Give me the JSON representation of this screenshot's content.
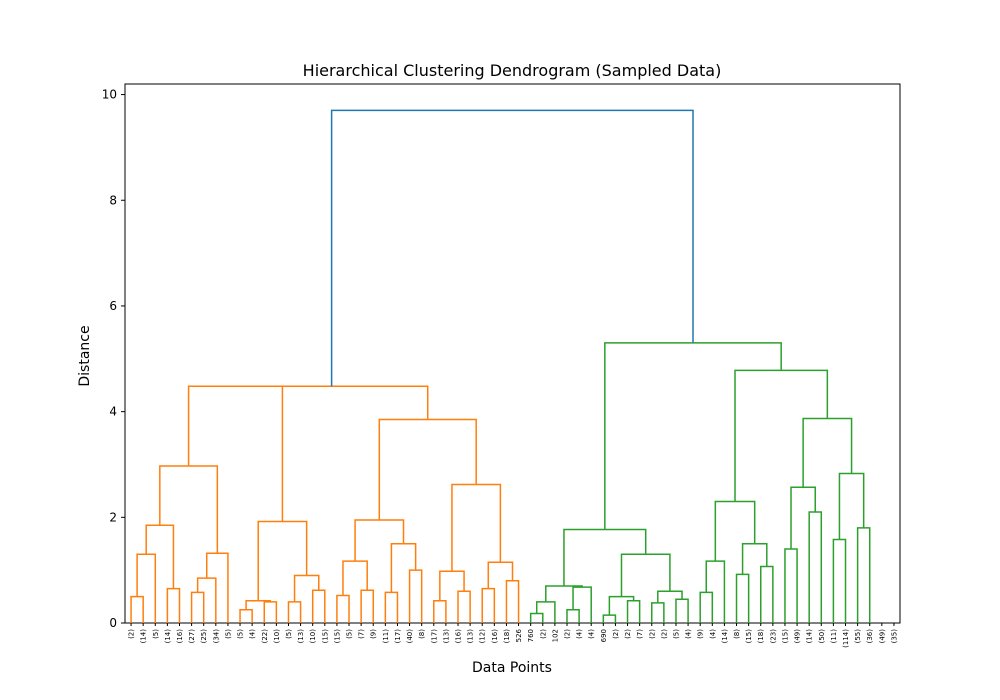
{
  "chart_data": {
    "type": "dendrogram",
    "title": "Hierarchical Clustering Dendrogram (Sampled Data)",
    "xlabel": "Data Points",
    "ylabel": "Distance",
    "ylim": [
      0,
      10.2
    ],
    "yticks": [
      0,
      2,
      4,
      6,
      8,
      10
    ],
    "grid": false,
    "colors": {
      "cluster_1": "#ff7f0e",
      "cluster_2": "#2ca02c",
      "link_above_threshold": "#1f77b4"
    },
    "leaf_labels": [
      "(2)",
      "(14)",
      "(5)",
      "(14)",
      "(16)",
      "(27)",
      "(25)",
      "(34)",
      "(5)",
      "(5)",
      "(4)",
      "(22)",
      "(10)",
      "(5)",
      "(13)",
      "(10)",
      "(15)",
      "(15)",
      "(5)",
      "(7)",
      "(9)",
      "(11)",
      "(17)",
      "(40)",
      "(8)",
      "(17)",
      "(13)",
      "(16)",
      "(13)",
      "(12)",
      "(16)",
      "(18)",
      "526",
      "760",
      "(2)",
      "102",
      "(2)",
      "(4)",
      "(4)",
      "690",
      "(2)",
      "(2)",
      "(7)",
      "(2)",
      "(2)",
      "(5)",
      "(4)",
      "(9)",
      "(4)",
      "(14)",
      "(8)",
      "(15)",
      "(18)",
      "(23)",
      "(15)",
      "(49)",
      "(14)",
      "(50)",
      "(11)",
      "(114)",
      "(55)",
      "(36)",
      "(49)",
      "(35)"
    ],
    "merges": [
      {
        "id": 64,
        "left": 0,
        "right": 1,
        "height": 0.5,
        "color": "#ff7f0e"
      },
      {
        "id": 65,
        "left": 64,
        "right": 2,
        "height": 1.3,
        "color": "#ff7f0e"
      },
      {
        "id": 66,
        "left": 3,
        "right": 4,
        "height": 0.65,
        "color": "#ff7f0e"
      },
      {
        "id": 67,
        "left": 65,
        "right": 66,
        "height": 1.85,
        "color": "#ff7f0e"
      },
      {
        "id": 68,
        "left": 5,
        "right": 6,
        "height": 0.58,
        "color": "#ff7f0e"
      },
      {
        "id": 69,
        "left": 68,
        "right": 7,
        "height": 0.85,
        "color": "#ff7f0e"
      },
      {
        "id": 70,
        "left": 69,
        "right": 8,
        "height": 1.32,
        "color": "#ff7f0e"
      },
      {
        "id": 71,
        "left": 67,
        "right": 70,
        "height": 2.97,
        "color": "#ff7f0e"
      },
      {
        "id": 72,
        "left": 9,
        "right": 10,
        "height": 0.25,
        "color": "#ff7f0e"
      },
      {
        "id": 73,
        "left": 11,
        "right": 12,
        "height": 0.4,
        "color": "#ff7f0e"
      },
      {
        "id": 74,
        "left": 72,
        "right": 73,
        "height": 0.42,
        "color": "#ff7f0e"
      },
      {
        "id": 75,
        "left": 13,
        "right": 14,
        "height": 0.4,
        "color": "#ff7f0e"
      },
      {
        "id": 76,
        "left": 15,
        "right": 16,
        "height": 0.62,
        "color": "#ff7f0e"
      },
      {
        "id": 77,
        "left": 75,
        "right": 76,
        "height": 0.9,
        "color": "#ff7f0e"
      },
      {
        "id": 78,
        "left": 74,
        "right": 77,
        "height": 1.92,
        "color": "#ff7f0e"
      },
      {
        "id": 79,
        "left": 71,
        "right": 78,
        "height": 4.48,
        "color": "#ff7f0e"
      },
      {
        "id": 80,
        "left": 17,
        "right": 18,
        "height": 0.52,
        "color": "#ff7f0e"
      },
      {
        "id": 81,
        "left": 19,
        "right": 20,
        "height": 0.62,
        "color": "#ff7f0e"
      },
      {
        "id": 82,
        "left": 80,
        "right": 81,
        "height": 1.17,
        "color": "#ff7f0e"
      },
      {
        "id": 83,
        "left": 21,
        "right": 22,
        "height": 0.58,
        "color": "#ff7f0e"
      },
      {
        "id": 84,
        "left": 23,
        "right": 24,
        "height": 1.0,
        "color": "#ff7f0e"
      },
      {
        "id": 85,
        "left": 83,
        "right": 84,
        "height": 1.5,
        "color": "#ff7f0e"
      },
      {
        "id": 86,
        "left": 82,
        "right": 85,
        "height": 1.95,
        "color": "#ff7f0e"
      },
      {
        "id": 87,
        "left": 25,
        "right": 26,
        "height": 0.42,
        "color": "#ff7f0e"
      },
      {
        "id": 88,
        "left": 27,
        "right": 28,
        "height": 0.6,
        "color": "#ff7f0e"
      },
      {
        "id": 89,
        "left": 87,
        "right": 88,
        "height": 0.98,
        "color": "#ff7f0e"
      },
      {
        "id": 90,
        "left": 29,
        "right": 30,
        "height": 0.65,
        "color": "#ff7f0e"
      },
      {
        "id": 91,
        "left": 31,
        "right": 32,
        "height": 0.8,
        "color": "#ff7f0e"
      },
      {
        "id": 92,
        "left": 90,
        "right": 91,
        "height": 1.15,
        "color": "#ff7f0e"
      },
      {
        "id": 93,
        "left": 89,
        "right": 92,
        "height": 2.62,
        "color": "#ff7f0e"
      },
      {
        "id": 94,
        "left": 86,
        "right": 93,
        "height": 3.85,
        "color": "#ff7f0e"
      },
      {
        "id": 95,
        "left": 79,
        "right": 94,
        "height": 4.48,
        "color": "#ff7f0e"
      },
      {
        "id": 96,
        "left": 33,
        "right": 34,
        "height": 0.18,
        "color": "#2ca02c"
      },
      {
        "id": 97,
        "left": 96,
        "right": 35,
        "height": 0.4,
        "color": "#2ca02c"
      },
      {
        "id": 98,
        "left": 36,
        "right": 37,
        "height": 0.25,
        "color": "#2ca02c"
      },
      {
        "id": 99,
        "left": 98,
        "right": 38,
        "height": 0.68,
        "color": "#2ca02c"
      },
      {
        "id": 100,
        "left": 97,
        "right": 99,
        "height": 0.7,
        "color": "#2ca02c"
      },
      {
        "id": 101,
        "left": 39,
        "right": 40,
        "height": 0.15,
        "color": "#2ca02c"
      },
      {
        "id": 102,
        "left": 41,
        "right": 42,
        "height": 0.42,
        "color": "#2ca02c"
      },
      {
        "id": 103,
        "left": 101,
        "right": 102,
        "height": 0.5,
        "color": "#2ca02c"
      },
      {
        "id": 104,
        "left": 43,
        "right": 44,
        "height": 0.38,
        "color": "#2ca02c"
      },
      {
        "id": 105,
        "left": 45,
        "right": 46,
        "height": 0.45,
        "color": "#2ca02c"
      },
      {
        "id": 106,
        "left": 104,
        "right": 105,
        "height": 0.6,
        "color": "#2ca02c"
      },
      {
        "id": 107,
        "left": 103,
        "right": 106,
        "height": 1.3,
        "color": "#2ca02c"
      },
      {
        "id": 108,
        "left": 100,
        "right": 107,
        "height": 1.77,
        "color": "#2ca02c"
      },
      {
        "id": 109,
        "left": 47,
        "right": 48,
        "height": 0.58,
        "color": "#2ca02c"
      },
      {
        "id": 110,
        "left": 109,
        "right": 49,
        "height": 1.17,
        "color": "#2ca02c"
      },
      {
        "id": 111,
        "left": 50,
        "right": 51,
        "height": 0.92,
        "color": "#2ca02c"
      },
      {
        "id": 112,
        "left": 52,
        "right": 53,
        "height": 1.07,
        "color": "#2ca02c"
      },
      {
        "id": 113,
        "left": 111,
        "right": 112,
        "height": 1.5,
        "color": "#2ca02c"
      },
      {
        "id": 114,
        "left": 110,
        "right": 113,
        "height": 2.3,
        "color": "#2ca02c"
      },
      {
        "id": 115,
        "left": 54,
        "right": 55,
        "height": 1.4,
        "color": "#2ca02c"
      },
      {
        "id": 116,
        "left": 56,
        "right": 57,
        "height": 2.1,
        "color": "#2ca02c"
      },
      {
        "id": 117,
        "left": 115,
        "right": 116,
        "height": 2.57,
        "color": "#2ca02c"
      },
      {
        "id": 118,
        "left": 58,
        "right": 59,
        "height": 1.58,
        "color": "#2ca02c"
      },
      {
        "id": 119,
        "left": 60,
        "right": 61,
        "height": 1.8,
        "color": "#2ca02c"
      },
      {
        "id": 120,
        "left": 118,
        "right": 119,
        "height": 2.83,
        "color": "#2ca02c"
      },
      {
        "id": 121,
        "left": 117,
        "right": 120,
        "height": 3.87,
        "color": "#2ca02c"
      },
      {
        "id": 122,
        "left": 114,
        "right": 121,
        "height": 4.78,
        "color": "#2ca02c"
      },
      {
        "id": 123,
        "left": 108,
        "right": 122,
        "height": 5.3,
        "color": "#2ca02c"
      },
      {
        "id": 124,
        "left": 95,
        "right": 123,
        "height": 9.7,
        "color": "#1f77b4"
      }
    ]
  }
}
